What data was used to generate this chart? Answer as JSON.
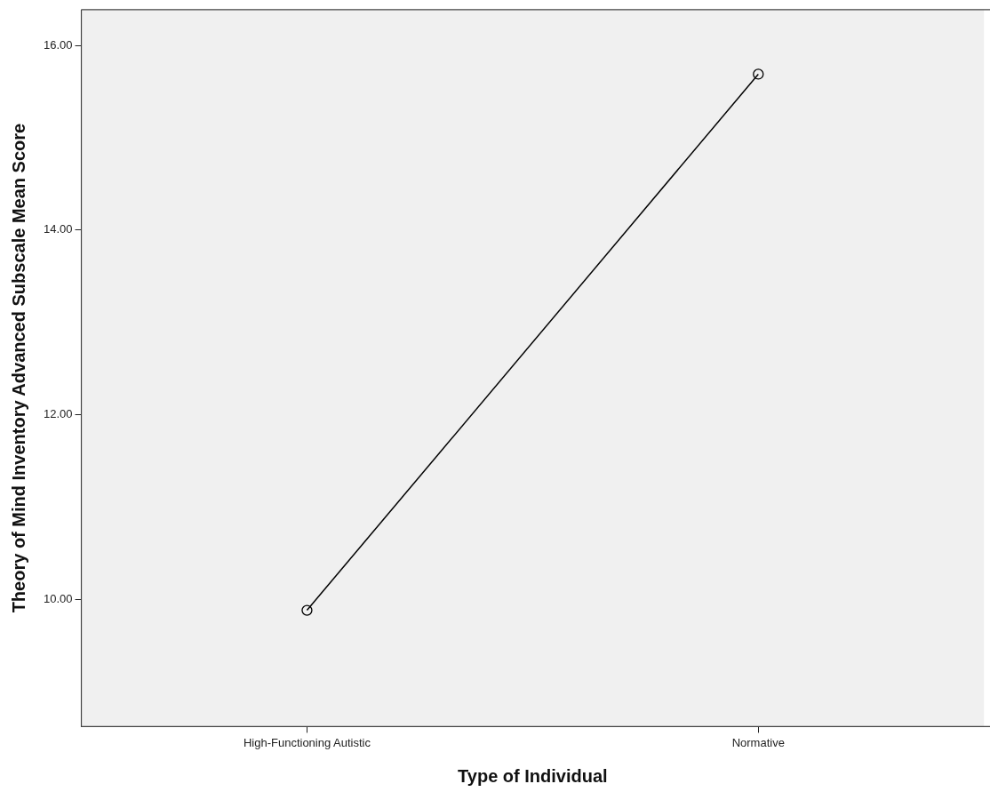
{
  "chart_data": {
    "type": "line",
    "xlabel": "Type of Individual",
    "ylabel": "Theory of Mind Inventory Advanced Subscale Mean Score",
    "categories": [
      "High-Functioning Autistic",
      "Normative"
    ],
    "series": [
      {
        "color": "#000000",
        "values": [
          9.88,
          15.69
        ]
      }
    ],
    "ylim": [
      8.62,
      16.39
    ],
    "yticks": [
      {
        "value": 10,
        "label": "10.00"
      },
      {
        "value": 12,
        "label": "12.00"
      },
      {
        "value": 14,
        "label": "14.00"
      },
      {
        "value": 16,
        "label": "16.00"
      }
    ],
    "grid": false,
    "legend": false,
    "marker": "circle",
    "line_style": "solid"
  }
}
